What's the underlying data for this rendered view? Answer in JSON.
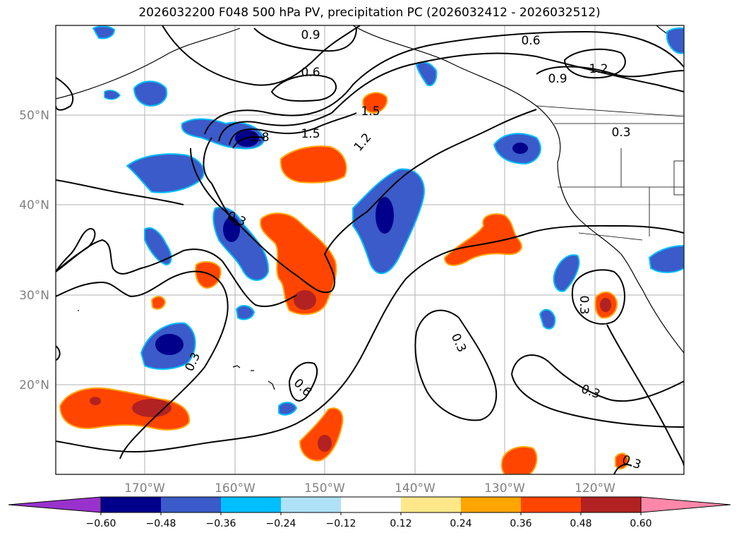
{
  "title": "2026032200 F048 500 hPa PV, precipitation PC (2026032412 - 2026032512)",
  "map": {
    "projection": "lat-lon",
    "lon_range": [
      180,
      -110
    ],
    "lat_range": [
      10,
      60
    ],
    "lat_ticks": [
      "20°N",
      "30°N",
      "40°N",
      "50°N"
    ],
    "lon_ticks": [
      "170°W",
      "160°W",
      "150°W",
      "140°W",
      "130°W",
      "120°W"
    ],
    "grid": true
  },
  "contour_labels": [
    "0.9",
    "0.6",
    "0.6",
    "0.9",
    "1.2",
    "0.3",
    "1.5",
    "1.2",
    "1.5",
    "1.8",
    "0.3",
    "0.3",
    "0.6",
    "0.3",
    "0.3",
    "0.3",
    "0.3"
  ],
  "colorbar": {
    "colors": [
      "#9932cc",
      "#00008b",
      "#3a5bc9",
      "#00bfff",
      "#afe2f7",
      "#ffffff",
      "#ffe88a",
      "#ffa500",
      "#ff4500",
      "#b22222",
      "#ff88aa"
    ],
    "tick_labels": [
      "−0.60",
      "−0.48",
      "−0.36",
      "−0.24",
      "−0.12",
      "0.12",
      "0.24",
      "0.36",
      "0.48",
      "0.60"
    ],
    "extend": "both"
  }
}
